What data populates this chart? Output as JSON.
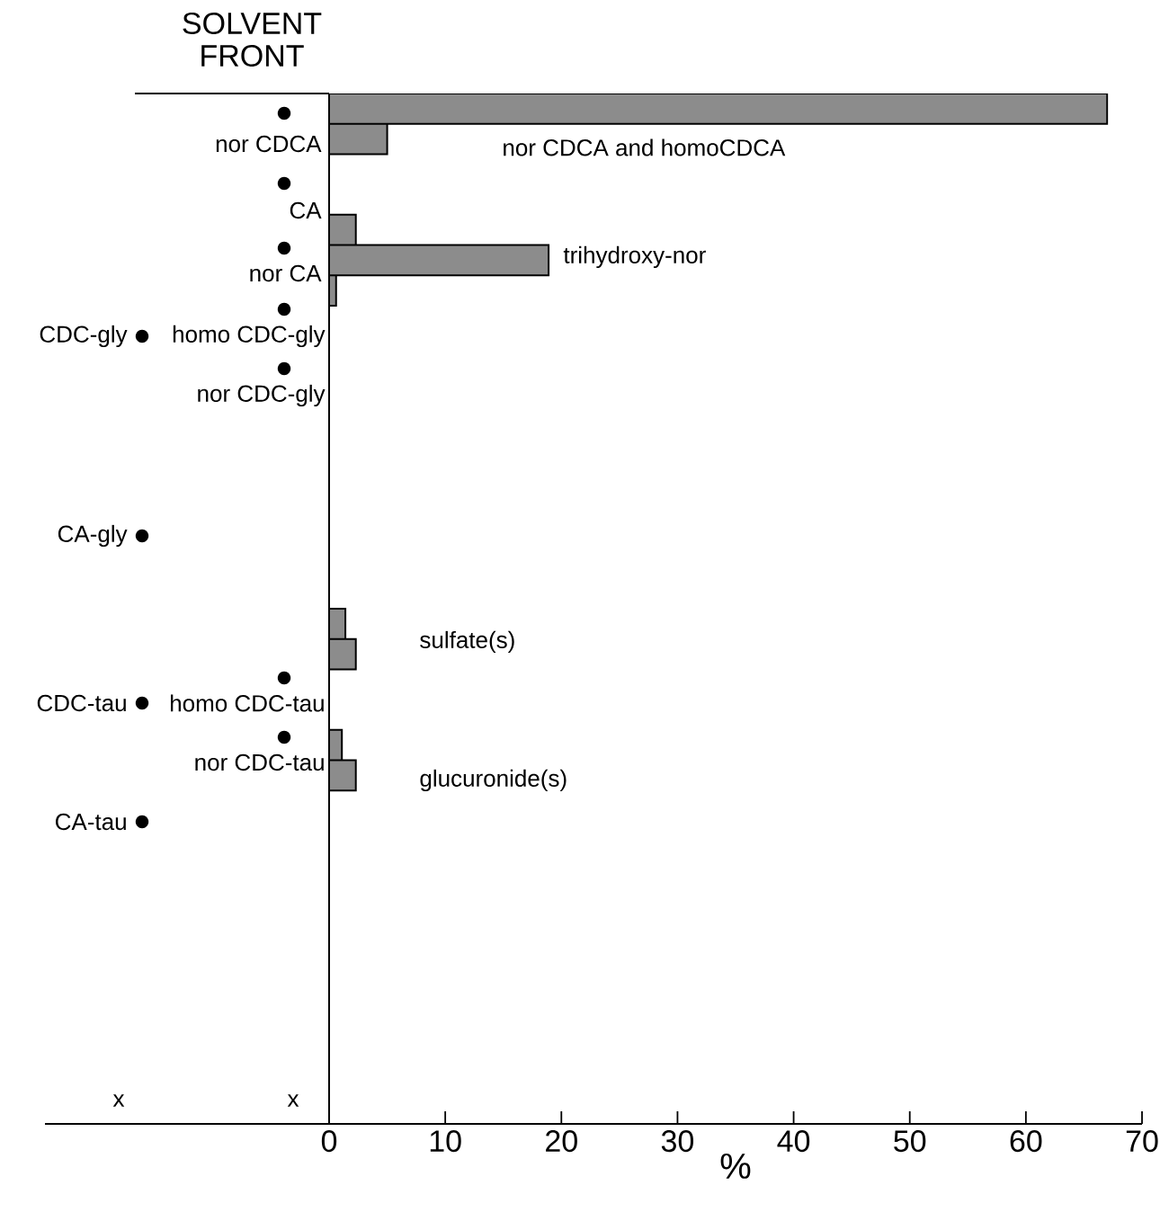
{
  "chart_data": {
    "type": "bar",
    "orientation": "horizontal",
    "xlabel": "%",
    "categories": [
      null,
      null,
      null,
      null,
      null,
      null,
      null,
      null,
      null,
      null,
      null,
      null,
      null,
      null,
      null,
      null,
      null,
      null,
      null,
      null,
      null,
      null,
      null,
      null,
      null,
      null,
      null,
      null,
      null,
      null,
      null,
      null,
      null,
      null
    ],
    "values": [
      67,
      5,
      0,
      0,
      2.3,
      18.9,
      0.6,
      0,
      0,
      0,
      0,
      0,
      0,
      0,
      0,
      0,
      0,
      1.4,
      2.3,
      0,
      0,
      1.1,
      2.3,
      0,
      0,
      0,
      0,
      0,
      0,
      0,
      0,
      0,
      0,
      0
    ],
    "color": "#8c8c8c",
    "xlim": [
      0,
      70
    ],
    "xticks": [
      0,
      10,
      20,
      30,
      40,
      50,
      60,
      70
    ],
    "tick_labels": "x",
    "annotations": [
      "SOLVENT FRONT",
      "nor CDCA and homoCDCA",
      "trihydroxy-nor",
      "sulfate(s)",
      "glucuronide(s)",
      "nor CDCA",
      "CA",
      "nor CA",
      "CDC-gly",
      "homo CDC-gly",
      "nor CDC-gly",
      "CA-gly",
      "CDC-tau",
      "homo CDC-tau",
      "nor CDC-tau",
      "CA-tau",
      "x",
      "x"
    ]
  }
}
